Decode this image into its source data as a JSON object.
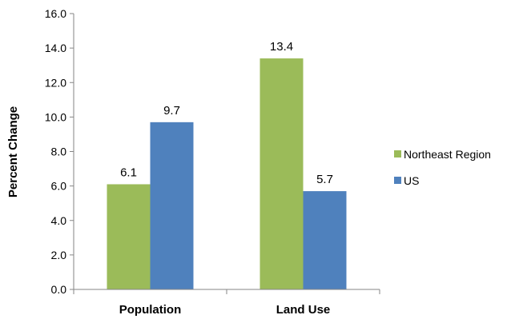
{
  "chart_data": {
    "type": "bar",
    "categories": [
      "Population",
      "Land Use"
    ],
    "series": [
      {
        "name": "Northeast Region",
        "values": [
          6.1,
          13.4
        ],
        "color": "#9BBB59"
      },
      {
        "name": "US",
        "values": [
          9.7,
          5.7
        ],
        "color": "#4F81BD"
      }
    ],
    "ylabel": "Percent Change",
    "xlabel": "",
    "ylim": [
      0,
      16
    ],
    "yticks": [
      "0.0",
      "2.0",
      "4.0",
      "6.0",
      "8.0",
      "10.0",
      "12.0",
      "14.0",
      "16.0"
    ],
    "data_labels": [
      [
        "6.1",
        "13.4"
      ],
      [
        "9.7",
        "5.7"
      ]
    ],
    "grid": false,
    "legend": "right"
  }
}
